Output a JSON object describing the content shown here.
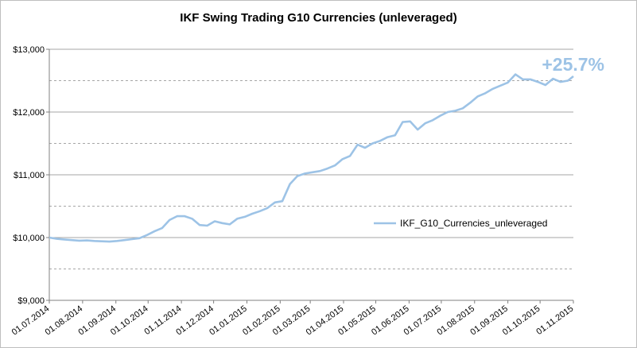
{
  "chart_data": {
    "type": "line",
    "title": "IKF Swing Trading G10 Currencies (unleveraged)",
    "xlabel": "",
    "ylabel": "",
    "annotation": "+25.7%",
    "legend_position": "right",
    "grid": true,
    "ylim": [
      9000,
      13000
    ],
    "xlim": [
      "2014-07-01",
      "2015-11-01"
    ],
    "y_ticks": [
      9000,
      10000,
      11000,
      12000,
      13000
    ],
    "y_tick_labels": [
      "$9,000",
      "$10,000",
      "$11,000",
      "$12,000",
      "$13,000"
    ],
    "x_tick_labels": [
      "01.07.2014",
      "01.08.2014",
      "01.09.2014",
      "01.10.2014",
      "01.11.2014",
      "01.12.2014",
      "01.01.2015",
      "01.02.2015",
      "01.03.2015",
      "01.04.2015",
      "01.05.2015",
      "01.06.2015",
      "01.07.2015",
      "01.08.2015",
      "01.09.2015",
      "01.10.2015",
      "01.11.2015"
    ],
    "colors": {
      "series": "#9dc3e6",
      "annotation": "#9dc3e6",
      "grid_major": "#a6a6a6",
      "grid_minor": "#a6a6a6"
    },
    "series": [
      {
        "name": "IKF_G10_Currencies_unleveraged",
        "x": [
          "2014-07-01",
          "2014-07-08",
          "2014-07-15",
          "2014-07-22",
          "2014-07-29",
          "2014-08-05",
          "2014-08-12",
          "2014-08-19",
          "2014-08-26",
          "2014-09-02",
          "2014-09-09",
          "2014-09-16",
          "2014-09-23",
          "2014-09-30",
          "2014-10-07",
          "2014-10-14",
          "2014-10-21",
          "2014-10-28",
          "2014-11-04",
          "2014-11-11",
          "2014-11-18",
          "2014-11-25",
          "2014-12-02",
          "2014-12-09",
          "2014-12-16",
          "2014-12-23",
          "2014-12-30",
          "2015-01-06",
          "2015-01-13",
          "2015-01-20",
          "2015-01-27",
          "2015-02-03",
          "2015-02-10",
          "2015-02-17",
          "2015-02-24",
          "2015-03-03",
          "2015-03-10",
          "2015-03-17",
          "2015-03-24",
          "2015-03-31",
          "2015-04-07",
          "2015-04-14",
          "2015-04-21",
          "2015-04-28",
          "2015-05-05",
          "2015-05-12",
          "2015-05-19",
          "2015-05-26",
          "2015-06-02",
          "2015-06-09",
          "2015-06-16",
          "2015-06-23",
          "2015-06-30",
          "2015-07-07",
          "2015-07-14",
          "2015-07-21",
          "2015-07-28",
          "2015-08-04",
          "2015-08-11",
          "2015-08-18",
          "2015-08-25",
          "2015-09-01",
          "2015-09-08",
          "2015-09-15",
          "2015-09-22",
          "2015-09-29",
          "2015-10-06",
          "2015-10-13",
          "2015-10-20",
          "2015-10-27",
          "2015-11-01"
        ],
        "values": [
          10000,
          9980,
          9970,
          9960,
          9950,
          9955,
          9945,
          9940,
          9935,
          9945,
          9960,
          9975,
          9990,
          10040,
          10100,
          10150,
          10280,
          10340,
          10340,
          10300,
          10200,
          10190,
          10260,
          10230,
          10210,
          10300,
          10330,
          10380,
          10420,
          10470,
          10560,
          10580,
          10850,
          10980,
          11020,
          11040,
          11060,
          11100,
          11150,
          11250,
          11300,
          11480,
          11430,
          11500,
          11540,
          11600,
          11630,
          11840,
          11850,
          11720,
          11820,
          11870,
          11940,
          12000,
          12020,
          12060,
          12150,
          12250,
          12300,
          12370,
          12420,
          12470,
          12600,
          12520,
          12520,
          12480,
          12430,
          12530,
          12480,
          12500,
          12570
        ]
      }
    ]
  }
}
